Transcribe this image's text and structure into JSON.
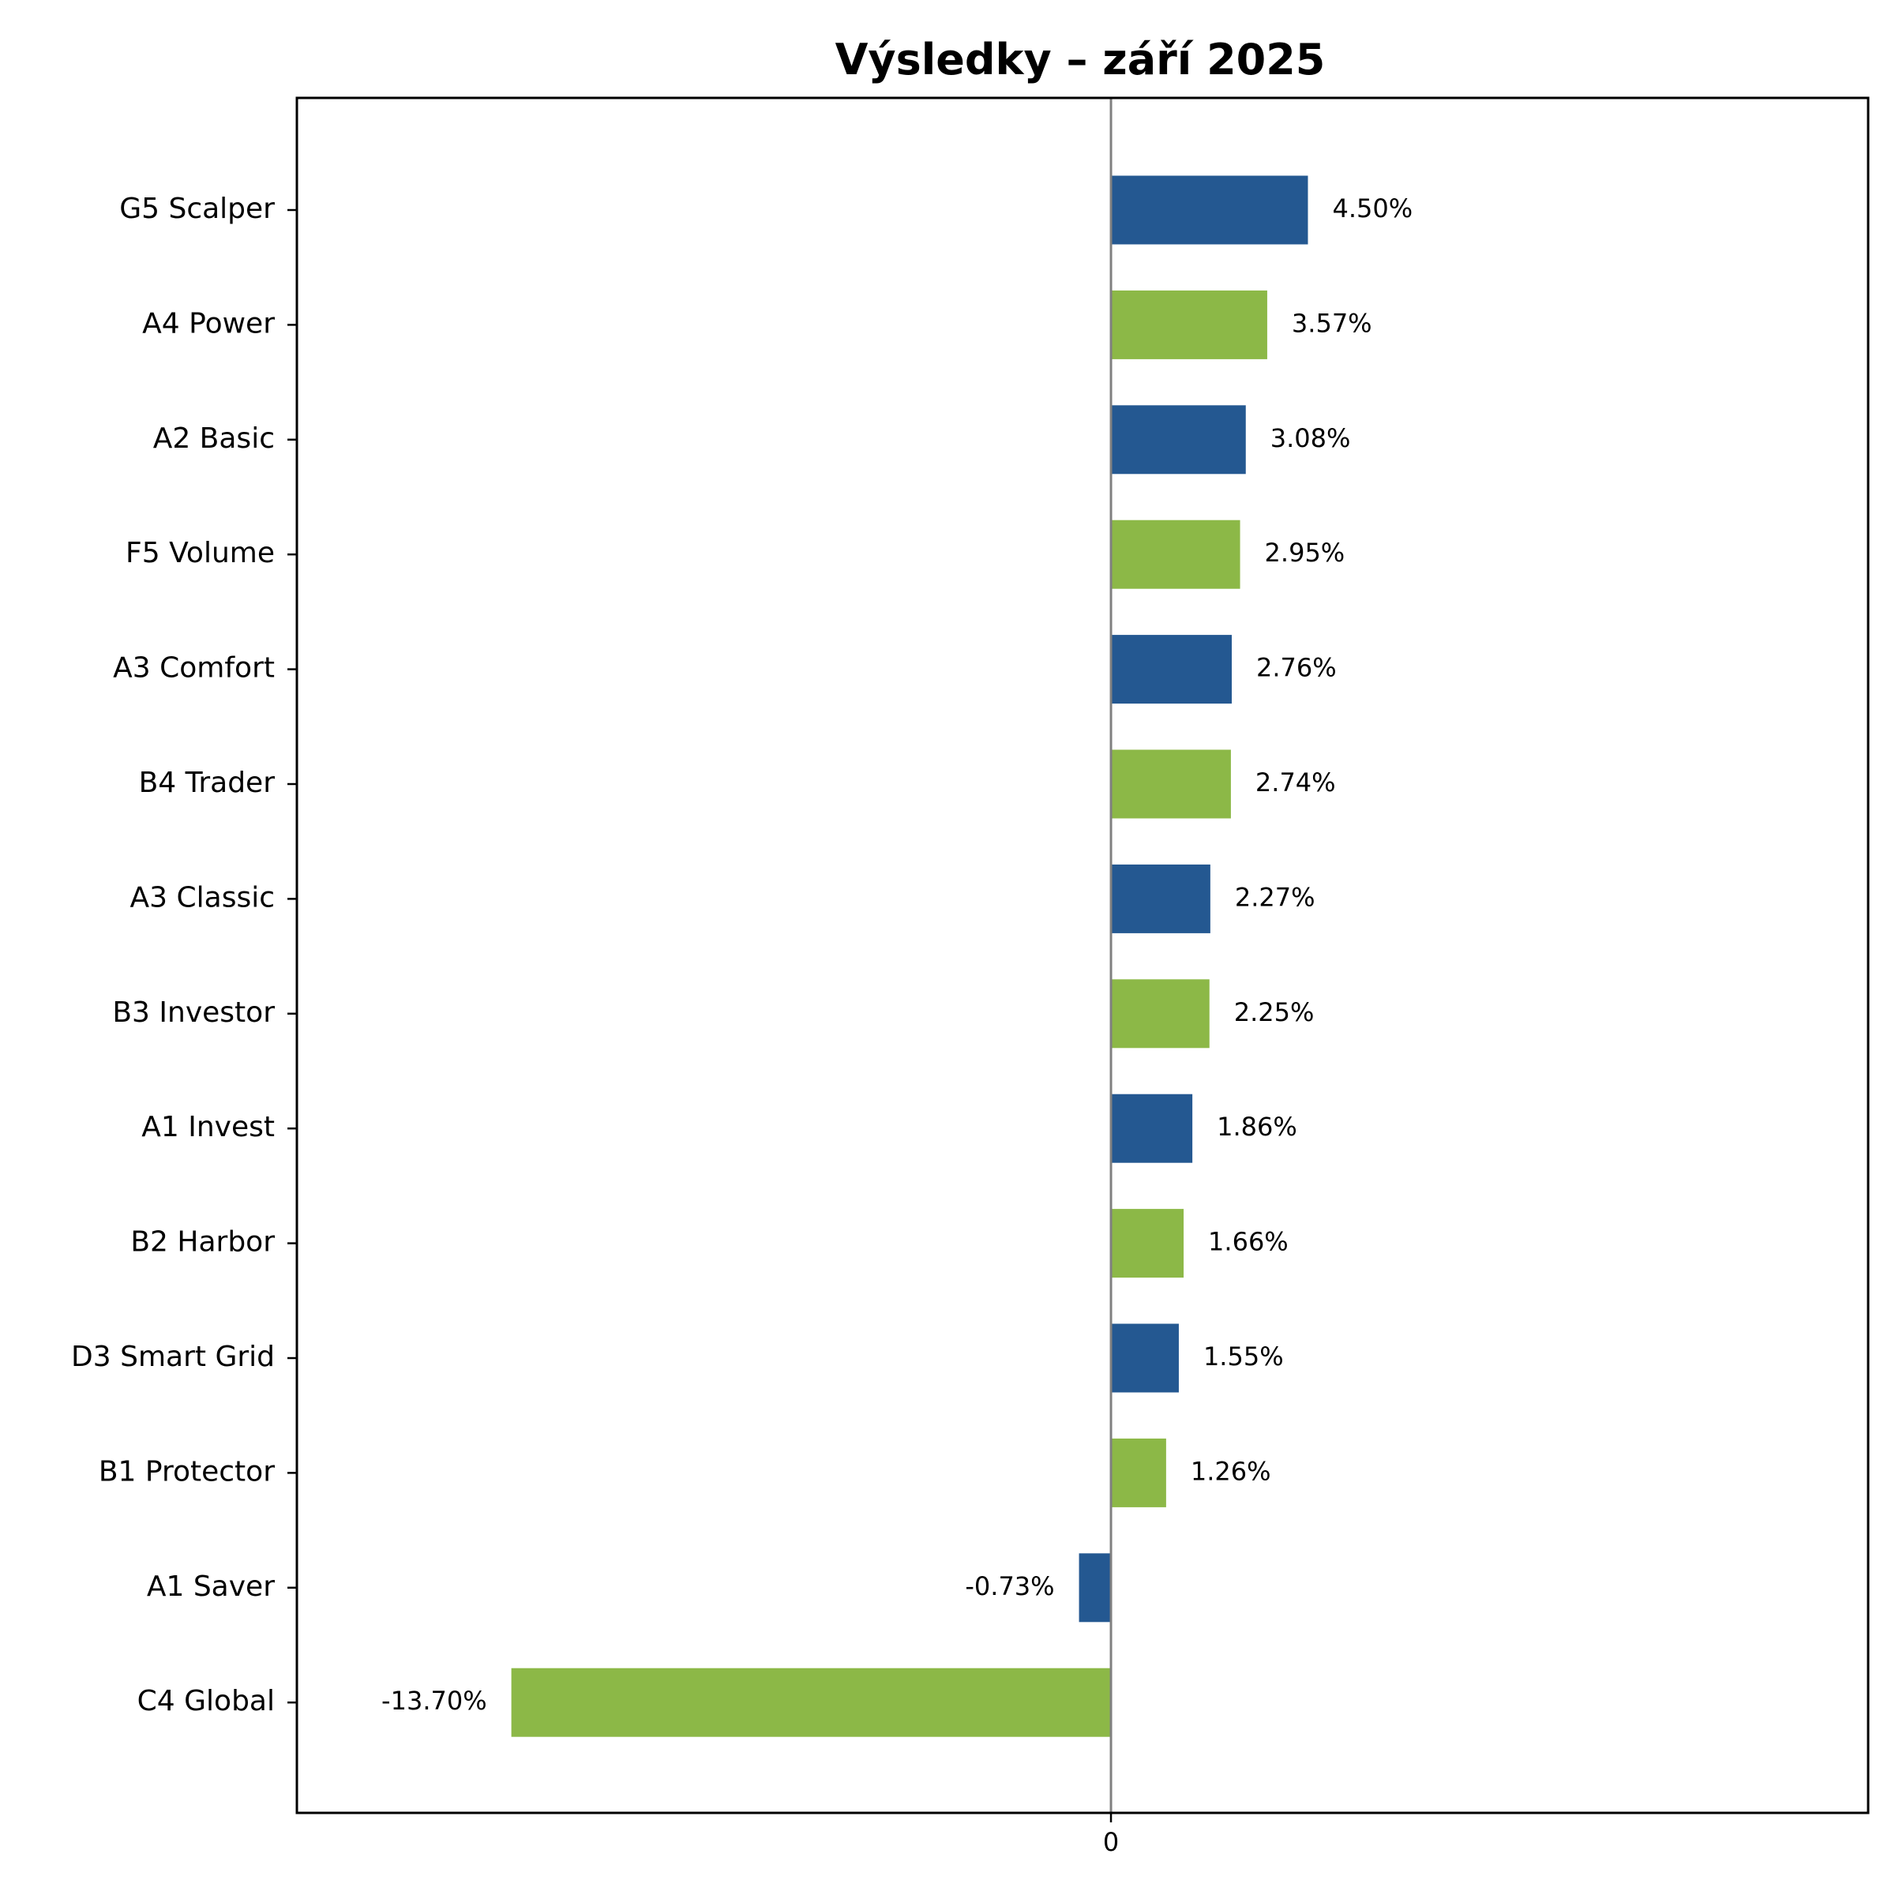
{
  "chart_data": {
    "type": "bar",
    "orientation": "horizontal",
    "title": "Výsledky – září 2025",
    "xlabel": "",
    "ylabel": "",
    "xticks": [
      "0"
    ],
    "grid": false,
    "legend": "none",
    "colors": [
      "#245891",
      "#8cb847"
    ],
    "zero_line_color": "#808080",
    "categories": [
      "G5 Scalper",
      "A4 Power",
      "A2 Basic",
      "F5 Volume",
      "A3 Comfort",
      "B4 Trader",
      "A3 Classic",
      "B3 Investor",
      "A1 Invest",
      "B2 Harbor",
      "D3 Smart Grid",
      "B1 Protector",
      "A1 Saver",
      "C4 Global"
    ],
    "values": [
      4.5,
      3.57,
      3.08,
      2.95,
      2.76,
      2.74,
      2.27,
      2.25,
      1.86,
      1.66,
      1.55,
      1.26,
      -0.73,
      -13.7
    ],
    "value_labels": [
      "4.50%",
      "3.57%",
      "3.08%",
      "2.95%",
      "2.76%",
      "2.74%",
      "2.27%",
      "2.25%",
      "1.86%",
      "1.66%",
      "1.55%",
      "1.26%",
      "-0.73%",
      "-13.70%"
    ],
    "xlim": [
      -18.6,
      17.3
    ]
  }
}
